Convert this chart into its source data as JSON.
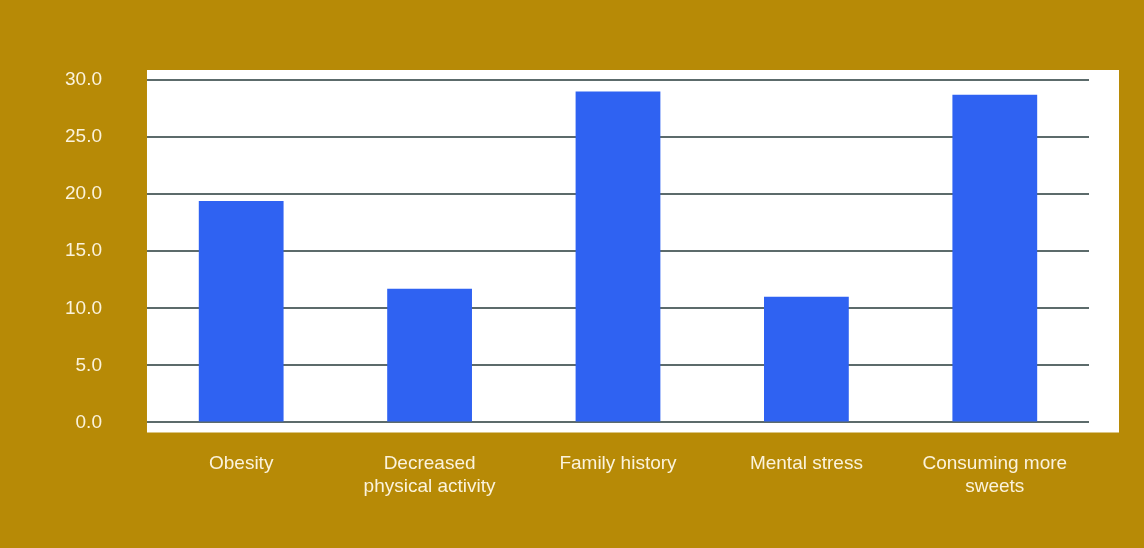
{
  "chart_data": {
    "type": "bar",
    "categories": [
      "Obesity",
      "Decreased physical activity",
      "Family history",
      "Mental stress",
      "Consuming more sweets"
    ],
    "values": [
      19.4,
      11.7,
      29.0,
      11.0,
      28.7
    ],
    "color": "#2f62f2",
    "ylim": [
      0,
      30
    ],
    "yticks": [
      {
        "value": 0,
        "label": "0.0"
      },
      {
        "value": 5,
        "label": "5.0"
      },
      {
        "value": 10,
        "label": "10.0"
      },
      {
        "value": 15,
        "label": "15.0"
      },
      {
        "value": 20,
        "label": "20.0"
      },
      {
        "value": 25,
        "label": "25.0"
      },
      {
        "value": 30,
        "label": "30.0"
      }
    ],
    "grid": "y",
    "legend": false
  }
}
